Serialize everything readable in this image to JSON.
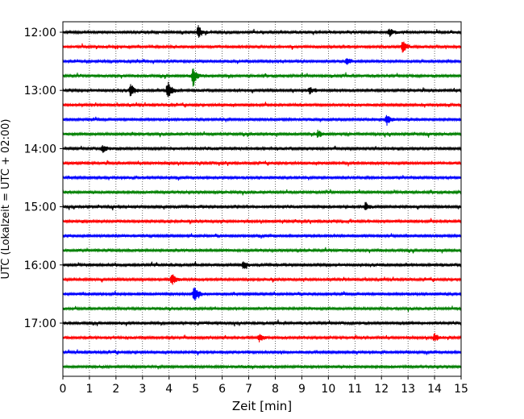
{
  "chart_data": {
    "type": "line",
    "subtype": "helicorder",
    "xlabel": "Zeit  [min]",
    "ylabel": "UTC (Lokalzeit = UTC + 02:00)",
    "xlim": [
      0,
      15
    ],
    "x_ticks": [
      "0",
      "1",
      "2",
      "3",
      "4",
      "5",
      "6",
      "7",
      "8",
      "9",
      "10",
      "11",
      "12",
      "13",
      "14",
      "15"
    ],
    "y_ticks": [
      "12:00",
      "13:00",
      "14:00",
      "15:00",
      "16:00",
      "17:00"
    ],
    "grid": "vertical-dotted",
    "trace_colors": [
      "#000000",
      "#ff0000",
      "#0000ff",
      "#008000"
    ],
    "rows_per_hour": 4,
    "traces": [
      {
        "start": "12:00",
        "color": "#000000"
      },
      {
        "start": "12:15",
        "color": "#ff0000"
      },
      {
        "start": "12:30",
        "color": "#0000ff"
      },
      {
        "start": "12:45",
        "color": "#008000"
      },
      {
        "start": "13:00",
        "color": "#000000"
      },
      {
        "start": "13:15",
        "color": "#ff0000"
      },
      {
        "start": "13:30",
        "color": "#0000ff"
      },
      {
        "start": "13:45",
        "color": "#008000"
      },
      {
        "start": "14:00",
        "color": "#000000"
      },
      {
        "start": "14:15",
        "color": "#ff0000"
      },
      {
        "start": "14:30",
        "color": "#0000ff"
      },
      {
        "start": "14:45",
        "color": "#008000"
      },
      {
        "start": "15:00",
        "color": "#000000"
      },
      {
        "start": "15:15",
        "color": "#ff0000"
      },
      {
        "start": "15:30",
        "color": "#0000ff"
      },
      {
        "start": "15:45",
        "color": "#008000"
      },
      {
        "start": "16:00",
        "color": "#000000"
      },
      {
        "start": "16:15",
        "color": "#ff0000"
      },
      {
        "start": "16:30",
        "color": "#0000ff"
      },
      {
        "start": "16:45",
        "color": "#008000"
      },
      {
        "start": "17:00",
        "color": "#000000"
      },
      {
        "start": "17:15",
        "color": "#ff0000"
      },
      {
        "start": "17:30",
        "color": "#0000ff"
      },
      {
        "start": "17:45",
        "color": "#008000"
      }
    ],
    "events": [
      {
        "trace": "12:00",
        "minute": 5.1,
        "amplitude": "medium"
      },
      {
        "trace": "12:00",
        "minute": 12.3,
        "amplitude": "small"
      },
      {
        "trace": "12:15",
        "minute": 12.8,
        "amplitude": "medium"
      },
      {
        "trace": "12:30",
        "minute": 10.7,
        "amplitude": "small"
      },
      {
        "trace": "12:45",
        "minute": 4.9,
        "amplitude": "large"
      },
      {
        "trace": "13:00",
        "minute": 2.55,
        "amplitude": "medium"
      },
      {
        "trace": "13:00",
        "minute": 3.95,
        "amplitude": "large"
      },
      {
        "trace": "13:00",
        "minute": 9.3,
        "amplitude": "small"
      },
      {
        "trace": "13:30",
        "minute": 12.2,
        "amplitude": "medium"
      },
      {
        "trace": "13:45",
        "minute": 9.6,
        "amplitude": "small"
      },
      {
        "trace": "14:00",
        "minute": 1.5,
        "amplitude": "small"
      },
      {
        "trace": "15:00",
        "minute": 11.4,
        "amplitude": "small"
      },
      {
        "trace": "16:00",
        "minute": 6.8,
        "amplitude": "small"
      },
      {
        "trace": "16:15",
        "minute": 4.1,
        "amplitude": "medium"
      },
      {
        "trace": "16:30",
        "minute": 4.95,
        "amplitude": "large"
      },
      {
        "trace": "17:15",
        "minute": 7.4,
        "amplitude": "small"
      },
      {
        "trace": "17:15",
        "minute": 14.0,
        "amplitude": "small"
      }
    ]
  }
}
